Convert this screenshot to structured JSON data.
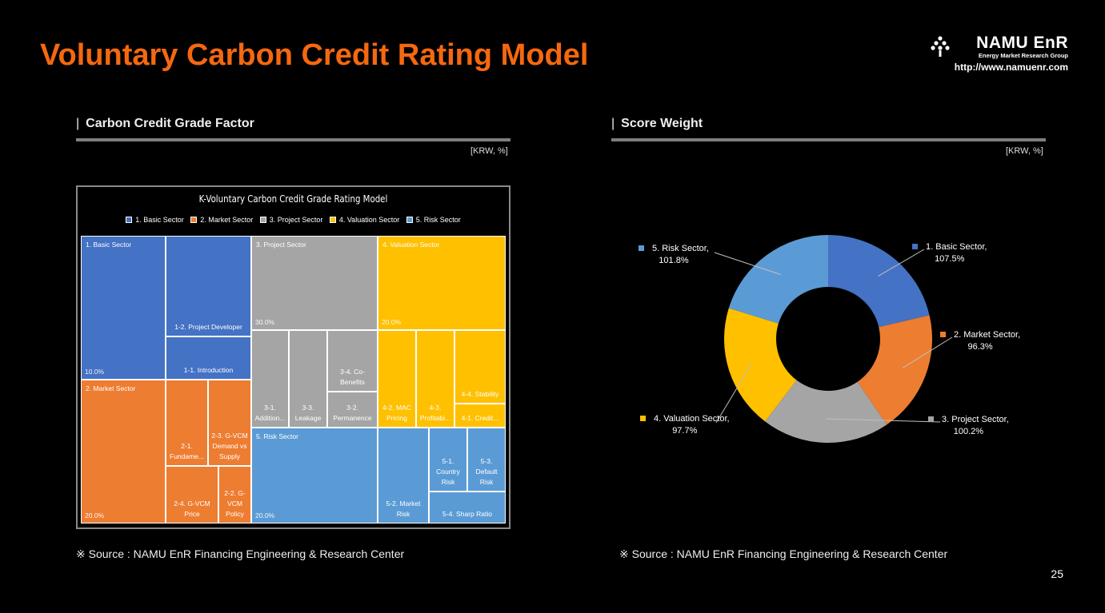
{
  "title": "Voluntary Carbon Credit Rating Model",
  "logo": {
    "name": "NAMU EnR",
    "subtitle": "Energy Market Research Group",
    "url": "http://www.namuenr.com"
  },
  "left": {
    "section_title": "Carbon Credit Grade Factor",
    "unit": "[KRW, %]",
    "source": "※ Source : NAMU EnR Financing Engineering & Research Center"
  },
  "right": {
    "section_title": "Score Weight",
    "unit": "[KRW, %]",
    "source": "※ Source : NAMU EnR Financing Engineering & Research Center"
  },
  "page_number": "25",
  "colors": {
    "basic": "#4472C4",
    "market": "#ED7D31",
    "project": "#A5A5A5",
    "valuation": "#FFC000",
    "risk": "#5B9BD5",
    "title": "#F5680F"
  },
  "chart_data": [
    {
      "type": "treemap",
      "title": "K-Voluntary Carbon Credit Grade Rating Model",
      "legend": [
        "1. Basic Sector",
        "2. Market Sector",
        "3.  Project Sector",
        "4. Valuation Sector",
        "5. Risk Sector"
      ],
      "groups": [
        {
          "name": "1. Basic Sector",
          "value": "10.0%",
          "children": [
            "1-2. Project Developer",
            "1-1. Introduction"
          ]
        },
        {
          "name": "2. Market Sector",
          "value": "20.0%",
          "children": [
            "2-1. Fundame...",
            "2-3. G-VCM Demand vs Supply",
            "2-4. G-VCM Price",
            "2-2. G-VCM Policy"
          ]
        },
        {
          "name": "3.  Project Sector",
          "value": "30.0%",
          "children": [
            "3-1. Addition...",
            "3-3. Leakage",
            "3-4. Co-Benefits",
            "3-2. Permanence"
          ]
        },
        {
          "name": "4. Valuation Sector",
          "value": "20.0%",
          "children": [
            "4-2. MAC Pricing",
            "4-3. Profitabi...",
            "4-4. Stability",
            "4-1. Credit..."
          ]
        },
        {
          "name": "5. Risk Sector",
          "value": "20.0%",
          "children": [
            "5-2. Market Risk",
            "5-1. Country Risk",
            "5-3. Default Risk",
            "5-4. Sharp Ratio"
          ]
        }
      ]
    },
    {
      "type": "pie",
      "subtype": "donut",
      "labels": [
        "1. Basic Sector,",
        "2. Market Sector,",
        "3.  Project Sector,",
        "4. Valuation Sector,",
        "5. Risk Sector,"
      ],
      "values": [
        107.5,
        96.3,
        100.2,
        97.7,
        101.8
      ],
      "value_labels": [
        "107.5%",
        "96.3%",
        "100.2%",
        "97.7%",
        "101.8%"
      ],
      "colors": [
        "#4472C4",
        "#ED7D31",
        "#A5A5A5",
        "#FFC000",
        "#5B9BD5"
      ]
    }
  ]
}
